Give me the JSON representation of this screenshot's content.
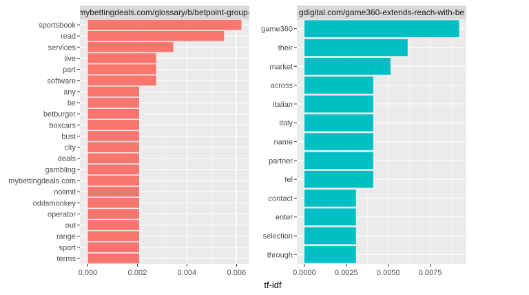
{
  "chart_data": [
    {
      "type": "bar",
      "orientation": "horizontal",
      "facet_title": "mybettingdeals.com/glossary/b/betpoint-group-",
      "color": "#F8766D",
      "categories": [
        "sportsbook",
        "read",
        "services",
        "live",
        "part",
        "software",
        "any",
        "be",
        "betburger",
        "boxcars",
        "bust",
        "city",
        "deals",
        "gambling",
        "mybettingdeals.com",
        "nolimit",
        "oddsmonkey",
        "operator",
        "out",
        "range",
        "sport",
        "terms"
      ],
      "values": [
        0.0062,
        0.0055,
        0.00345,
        0.00276,
        0.00276,
        0.00276,
        0.00207,
        0.00207,
        0.00207,
        0.00207,
        0.00207,
        0.00207,
        0.00207,
        0.00207,
        0.00207,
        0.00207,
        0.00207,
        0.00207,
        0.00207,
        0.00207,
        0.00207,
        0.00207
      ],
      "xlim": [
        -0.00032,
        0.00652
      ],
      "xticks": [
        0,
        0.002,
        0.004,
        0.006
      ],
      "xtick_labels": [
        "0.000",
        "0.002",
        "0.004",
        "0.006"
      ]
    },
    {
      "type": "bar",
      "orientation": "horizontal",
      "facet_title": "gdigital.com/game360-extends-reach-with-be",
      "color": "#00BFC4",
      "categories": [
        "game360",
        "their",
        "market",
        "across",
        "italian",
        "italy",
        "name",
        "partner",
        "tel",
        "contact",
        "enter",
        "selection",
        "through"
      ],
      "values": [
        0.00922,
        0.00615,
        0.00513,
        0.0041,
        0.0041,
        0.0041,
        0.0041,
        0.0041,
        0.0041,
        0.00307,
        0.00307,
        0.00307,
        0.00307
      ],
      "xlim": [
        -0.00045,
        0.00965
      ],
      "xticks": [
        0,
        0.0025,
        0.005,
        0.0075
      ],
      "xtick_labels": [
        "0.0000",
        "0.0025",
        "0.0050",
        "0.0075"
      ]
    }
  ],
  "xlabel": "tf-idf",
  "ylabel": ""
}
